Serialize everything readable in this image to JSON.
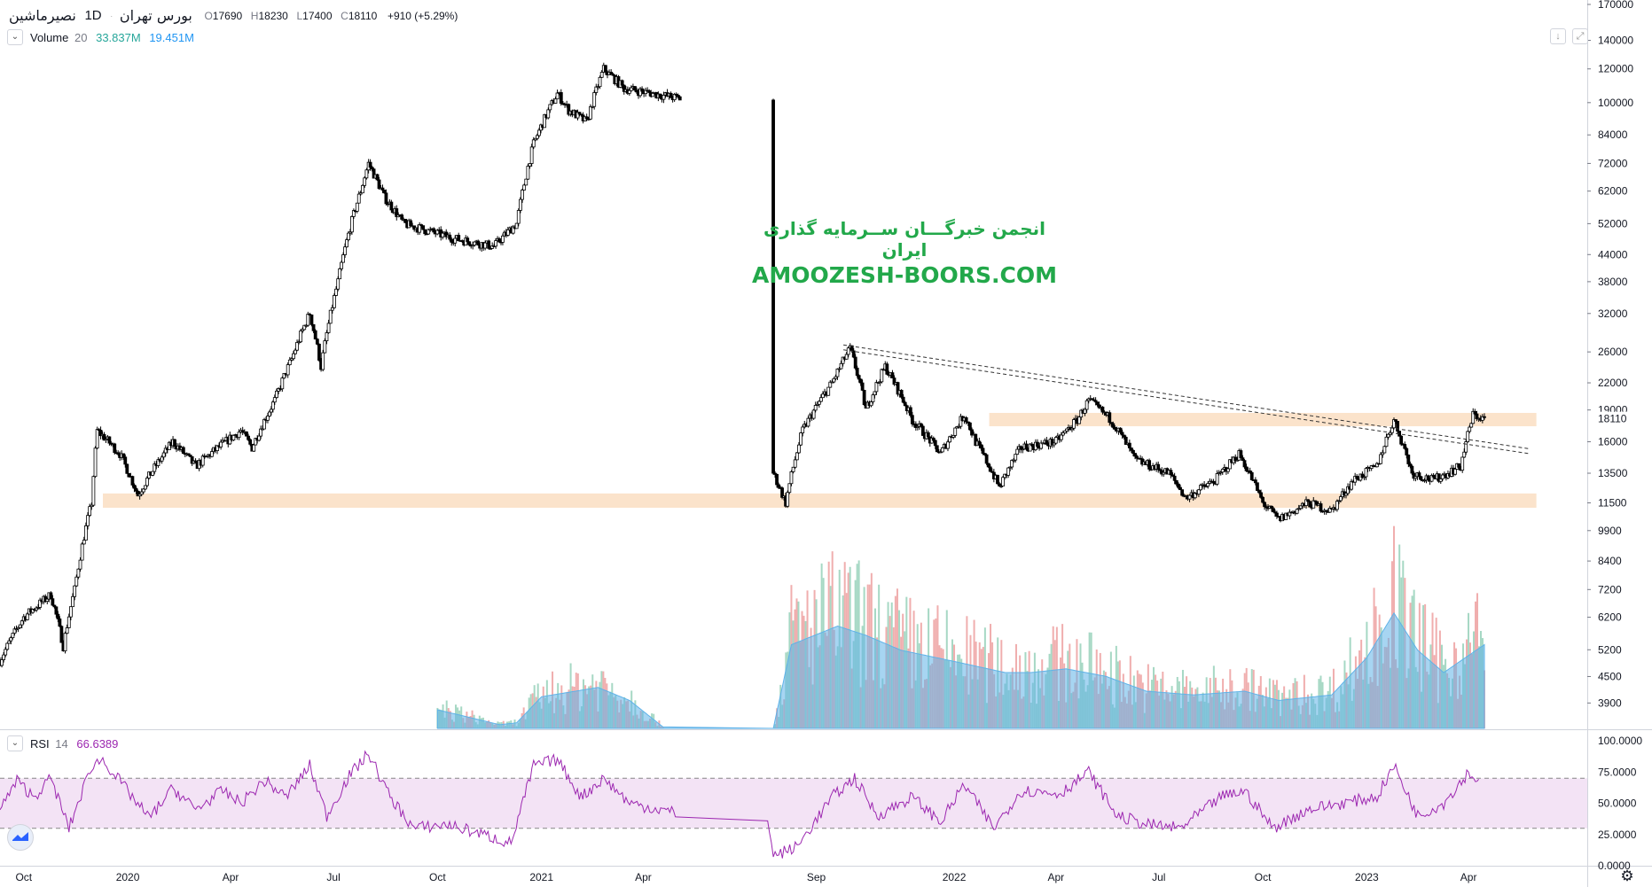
{
  "header": {
    "symbol": "نصیرماشین",
    "interval": "1D",
    "exchange": "بورس تهران",
    "open_label": "O",
    "open": "17690",
    "high_label": "H",
    "high": "18230",
    "low_label": "L",
    "low": "17400",
    "close_label": "C",
    "close": "18110",
    "change": "+910 (+5.29%)"
  },
  "volume_legend": {
    "name": "Volume",
    "length": "20",
    "value1": "33.837M",
    "value2": "19.451M"
  },
  "rsi_legend": {
    "name": "RSI",
    "length": "14",
    "value": "66.6389"
  },
  "watermark": {
    "line1": "انجمن خبرگـــان ســرمایه گذاری ایران",
    "line2": "AMOOZESH-BOORS.COM"
  },
  "price_axis": {
    "last_price": "18110"
  },
  "colors": {
    "candle": "#000000",
    "zone": "#fbe3cb",
    "rsi_line": "#9c27b0",
    "rsi_band": "#f3e3f5",
    "vol_ma": "#5fb2e8",
    "vol_up": "#a6d8c4",
    "vol_down": "#f0aeae",
    "watermark": "#22a84a",
    "legend_green": "#26a69a",
    "legend_blue": "#2196f3",
    "rsi_value": "#9c27b0"
  },
  "icons": {
    "collapse": "chevron-down-icon",
    "download": "arrow-down-icon",
    "fullscreen": "expand-icon",
    "settings": "gear-icon",
    "logo": "tradingview-logo-icon"
  },
  "chart_data": [
    {
      "type": "candlestick",
      "title": "نصیرماشین · 1D · بورس تهران",
      "y_scale": "log",
      "y_ticks": [
        3900,
        4500,
        5200,
        6200,
        7200,
        8400,
        9900,
        11500,
        13500,
        16000,
        19000,
        22000,
        26000,
        32000,
        38000,
        44000,
        52000,
        62000,
        72000,
        84000,
        100000,
        120000,
        140000,
        170000
      ],
      "x_ticks": [
        "Oct",
        "2020",
        "Apr",
        "Jul",
        "Oct",
        "2021",
        "Apr",
        "Sep",
        "2022",
        "Apr",
        "Jul",
        "Oct",
        "2023",
        "Apr"
      ],
      "x_range": [
        "2019-09-10",
        "2023-07-15"
      ],
      "close_path": [
        [
          "2019-09-10",
          4900
        ],
        [
          "2019-10-01",
          6200
        ],
        [
          "2019-10-25",
          7000
        ],
        [
          "2019-11-05",
          5300
        ],
        [
          "2019-11-15",
          7200
        ],
        [
          "2019-11-30",
          11500
        ],
        [
          "2019-12-05",
          17000
        ],
        [
          "2019-12-25",
          15000
        ],
        [
          "2020-01-10",
          12000
        ],
        [
          "2020-02-10",
          16000
        ],
        [
          "2020-03-01",
          14000
        ],
        [
          "2020-04-10",
          17000
        ],
        [
          "2020-04-20",
          15500
        ],
        [
          "2020-05-10",
          20000
        ],
        [
          "2020-05-25",
          25000
        ],
        [
          "2020-06-10",
          32000
        ],
        [
          "2020-06-20",
          24000
        ],
        [
          "2020-07-05",
          38000
        ],
        [
          "2020-07-25",
          62000
        ],
        [
          "2020-08-01",
          72000
        ],
        [
          "2020-08-15",
          60000
        ],
        [
          "2020-09-01",
          52000
        ],
        [
          "2020-10-15",
          48000
        ],
        [
          "2020-11-20",
          46000
        ],
        [
          "2020-12-10",
          52000
        ],
        [
          "2020-12-25",
          80000
        ],
        [
          "2021-01-15",
          105000
        ],
        [
          "2021-01-25",
          96000
        ],
        [
          "2021-02-10",
          90000
        ],
        [
          "2021-02-25",
          120000
        ],
        [
          "2021-03-15",
          108000
        ],
        [
          "2021-05-05",
          102000
        ],
        [
          "2021-07-25",
          13500
        ],
        [
          "2021-08-05",
          11500
        ],
        [
          "2021-08-20",
          17000
        ],
        [
          "2021-09-15",
          22000
        ],
        [
          "2021-10-01",
          26500
        ],
        [
          "2021-10-15",
          19000
        ],
        [
          "2021-11-01",
          24000
        ],
        [
          "2021-11-25",
          18000
        ],
        [
          "2021-12-20",
          15000
        ],
        [
          "2022-01-10",
          18500
        ],
        [
          "2022-01-20",
          16000
        ],
        [
          "2022-02-10",
          12500
        ],
        [
          "2022-03-01",
          15500
        ],
        [
          "2022-04-01",
          16000
        ],
        [
          "2022-04-20",
          18000
        ],
        [
          "2022-04-30",
          20000
        ],
        [
          "2022-05-20",
          18000
        ],
        [
          "2022-06-10",
          14500
        ],
        [
          "2022-07-10",
          13500
        ],
        [
          "2022-07-25",
          11800
        ],
        [
          "2022-08-20",
          13000
        ],
        [
          "2022-09-10",
          15000
        ],
        [
          "2022-10-01",
          11500
        ],
        [
          "2022-10-15",
          10500
        ],
        [
          "2022-11-10",
          11500
        ],
        [
          "2022-12-01",
          11000
        ],
        [
          "2022-12-20",
          13000
        ],
        [
          "2023-01-10",
          14000
        ],
        [
          "2023-01-25",
          18000
        ],
        [
          "2023-02-10",
          13500
        ],
        [
          "2023-03-01",
          13000
        ],
        [
          "2023-03-25",
          14000
        ],
        [
          "2023-04-05",
          18500
        ],
        [
          "2023-04-15",
          18110
        ]
      ],
      "horizontal_zones": [
        {
          "from": "2019-12-10",
          "to": "2023-05-31",
          "low": 11200,
          "high": 12100
        },
        {
          "from": "2022-02-01",
          "to": "2023-05-31",
          "low": 17400,
          "high": 18700
        }
      ],
      "trend_lines": [
        {
          "start": [
            "2021-09-25",
            27000
          ],
          "end": [
            "2023-05-25",
            15400
          ]
        },
        {
          "start": [
            "2021-09-25",
            26300
          ],
          "end": [
            "2023-05-25",
            15000
          ]
        }
      ]
    },
    {
      "type": "bar",
      "series": [
        {
          "name": "Volume",
          "values": [
            "33.837M"
          ]
        },
        {
          "name": "Volume MA 20",
          "values": [
            "19.451M"
          ]
        }
      ],
      "volume_ma_path": [
        [
          "2019-09-10",
          0.12
        ],
        [
          "2019-12-01",
          0.18
        ],
        [
          "2020-02-01",
          0.2
        ],
        [
          "2020-05-01",
          0.2
        ],
        [
          "2020-08-01",
          0.18
        ],
        [
          "2020-10-01",
          0.1
        ],
        [
          "2020-11-25",
          0.02
        ],
        [
          "2020-12-10",
          0.03
        ],
        [
          "2021-01-01",
          0.17
        ],
        [
          "2021-02-20",
          0.22
        ],
        [
          "2021-03-20",
          0.15
        ],
        [
          "2021-04-20",
          0.0
        ],
        [
          "2021-07-25",
          0.0
        ],
        [
          "2021-08-10",
          0.45
        ],
        [
          "2021-09-20",
          0.55
        ],
        [
          "2021-10-15",
          0.5
        ],
        [
          "2021-11-15",
          0.42
        ],
        [
          "2022-01-01",
          0.36
        ],
        [
          "2022-02-15",
          0.3
        ],
        [
          "2022-03-10",
          0.3
        ],
        [
          "2022-04-10",
          0.32
        ],
        [
          "2022-05-15",
          0.28
        ],
        [
          "2022-06-20",
          0.2
        ],
        [
          "2022-08-01",
          0.18
        ],
        [
          "2022-09-15",
          0.2
        ],
        [
          "2022-10-15",
          0.15
        ],
        [
          "2022-12-01",
          0.18
        ],
        [
          "2023-01-01",
          0.38
        ],
        [
          "2023-01-25",
          0.62
        ],
        [
          "2023-02-15",
          0.42
        ],
        [
          "2023-03-10",
          0.3
        ],
        [
          "2023-04-15",
          0.45
        ]
      ]
    },
    {
      "type": "line",
      "title": "RSI 14",
      "y_ticks": [
        "0.0000",
        "25.0000",
        "50.0000",
        "75.0000",
        "100.0000"
      ],
      "ylim": [
        0,
        100
      ],
      "band": [
        30,
        70
      ],
      "last_value": 66.6389,
      "values": [
        [
          "2019-09-10",
          45
        ],
        [
          "2019-09-25",
          68
        ],
        [
          "2019-10-10",
          55
        ],
        [
          "2019-10-25",
          70
        ],
        [
          "2019-11-10",
          30
        ],
        [
          "2019-11-30",
          80
        ],
        [
          "2019-12-10",
          85
        ],
        [
          "2020-01-05",
          55
        ],
        [
          "2020-01-20",
          38
        ],
        [
          "2020-02-10",
          62
        ],
        [
          "2020-03-01",
          45
        ],
        [
          "2020-03-25",
          60
        ],
        [
          "2020-04-10",
          50
        ],
        [
          "2020-05-01",
          68
        ],
        [
          "2020-05-20",
          55
        ],
        [
          "2020-06-10",
          80
        ],
        [
          "2020-06-25",
          40
        ],
        [
          "2020-07-15",
          72
        ],
        [
          "2020-08-01",
          90
        ],
        [
          "2020-08-20",
          55
        ],
        [
          "2020-09-10",
          30
        ],
        [
          "2020-10-10",
          33
        ],
        [
          "2020-11-10",
          25
        ],
        [
          "2020-12-05",
          18
        ],
        [
          "2020-12-25",
          80
        ],
        [
          "2021-01-15",
          85
        ],
        [
          "2021-02-05",
          55
        ],
        [
          "2021-02-25",
          70
        ],
        [
          "2021-03-20",
          50
        ],
        [
          "2021-05-01",
          42
        ],
        [
          "2021-07-20",
          38
        ],
        [
          "2021-07-25",
          8
        ],
        [
          "2021-08-15",
          15
        ],
        [
          "2021-09-15",
          55
        ],
        [
          "2021-10-05",
          70
        ],
        [
          "2021-10-25",
          40
        ],
        [
          "2021-11-25",
          55
        ],
        [
          "2021-12-20",
          35
        ],
        [
          "2022-01-10",
          65
        ],
        [
          "2022-02-05",
          30
        ],
        [
          "2022-03-01",
          60
        ],
        [
          "2022-04-05",
          58
        ],
        [
          "2022-04-30",
          75
        ],
        [
          "2022-05-25",
          40
        ],
        [
          "2022-06-20",
          33
        ],
        [
          "2022-07-20",
          30
        ],
        [
          "2022-08-25",
          55
        ],
        [
          "2022-09-15",
          60
        ],
        [
          "2022-10-10",
          30
        ],
        [
          "2022-11-10",
          45
        ],
        [
          "2022-12-10",
          50
        ],
        [
          "2023-01-10",
          55
        ],
        [
          "2023-01-25",
          80
        ],
        [
          "2023-02-15",
          40
        ],
        [
          "2023-03-10",
          50
        ],
        [
          "2023-04-01",
          75
        ],
        [
          "2023-04-10",
          66.6
        ]
      ]
    }
  ]
}
